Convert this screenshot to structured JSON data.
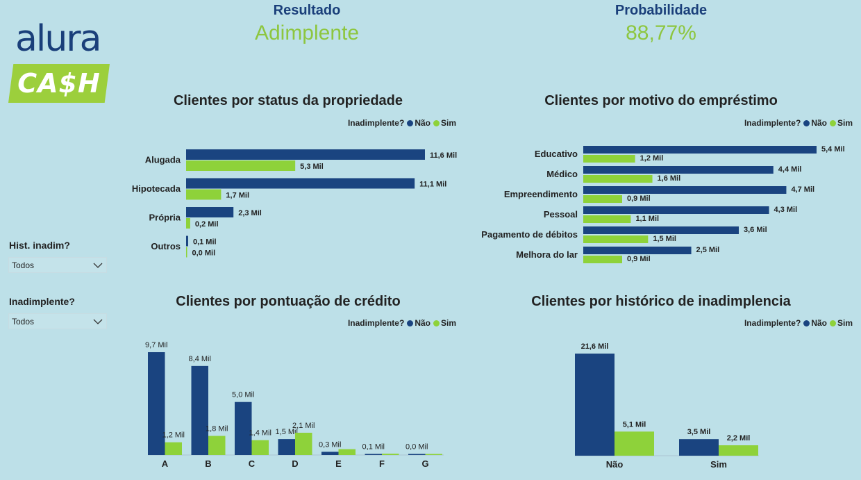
{
  "logo": {
    "line1": "alura",
    "line2": "CA$H"
  },
  "kpis": [
    {
      "label": "Resultado",
      "value": "Adimplente"
    },
    {
      "label": "Probabilidade",
      "value": "88,77%"
    }
  ],
  "slicers": [
    {
      "title": "Hist. inadim?",
      "value": "Todos"
    },
    {
      "title": "Inadimplente?",
      "value": "Todos"
    }
  ],
  "legend": {
    "title": "Inadimplente?",
    "items": [
      "Não",
      "Sim"
    ]
  },
  "colors": {
    "nao": "#1a4480",
    "sim": "#8ed23a",
    "background": "#bde0e8",
    "kpi_value": "#8dc63f",
    "kpi_label": "#1a3f7a"
  },
  "chart_data": [
    {
      "type": "bar",
      "orientation": "horizontal",
      "title": "Clientes por status da propriedade",
      "categories": [
        "Alugada",
        "Hipotecada",
        "Própria",
        "Outros"
      ],
      "series": [
        {
          "name": "Não",
          "values": [
            11.6,
            11.1,
            2.3,
            0.1
          ],
          "labels": [
            "11,6 Mil",
            "11,1 Mil",
            "2,3 Mil",
            "0,1 Mil"
          ]
        },
        {
          "name": "Sim",
          "values": [
            5.3,
            1.7,
            0.2,
            0.0
          ],
          "labels": [
            "5,3 Mil",
            "1,7 Mil",
            "0,2 Mil",
            "0,0 Mil"
          ]
        }
      ],
      "xlim": [
        0,
        11.6
      ],
      "legend": "top-right"
    },
    {
      "type": "bar",
      "orientation": "horizontal",
      "title": "Clientes por motivo do empréstimo",
      "categories": [
        "Educativo",
        "Médico",
        "Empreendimento",
        "Pessoal",
        "Pagamento de débitos",
        "Melhora do lar"
      ],
      "series": [
        {
          "name": "Não",
          "values": [
            5.4,
            4.4,
            4.7,
            4.3,
            3.6,
            2.5
          ],
          "labels": [
            "5,4 Mil",
            "4,4 Mil",
            "4,7 Mil",
            "4,3 Mil",
            "3,6 Mil",
            "2,5 Mil"
          ]
        },
        {
          "name": "Sim",
          "values": [
            1.2,
            1.6,
            0.9,
            1.1,
            1.5,
            0.9
          ],
          "labels": [
            "1,2 Mil",
            "1,6 Mil",
            "0,9 Mil",
            "1,1 Mil",
            "1,5 Mil",
            "0,9 Mil"
          ]
        }
      ],
      "xlim": [
        0,
        5.4
      ],
      "legend": "top-right"
    },
    {
      "type": "bar",
      "orientation": "vertical",
      "title": "Clientes por pontuação de crédito",
      "categories": [
        "A",
        "B",
        "C",
        "D",
        "E",
        "F",
        "G"
      ],
      "series": [
        {
          "name": "Não",
          "values": [
            9.7,
            8.4,
            5.0,
            1.5,
            0.3,
            0.1,
            0.0
          ],
          "labels": [
            "9,7 Mil",
            "8,4 Mil",
            "5,0 Mil",
            "1,5 Mil",
            "0,3 Mil",
            "0,1 Mil",
            "0,0 Mil"
          ]
        },
        {
          "name": "Sim",
          "values": [
            1.2,
            1.8,
            1.4,
            2.1,
            0.55,
            0.12,
            0.05
          ],
          "labels": [
            "1,2 Mil",
            "1,8 Mil",
            "1,4 Mil",
            "2,1 Mil",
            "",
            "",
            ""
          ]
        }
      ],
      "ylim": [
        0,
        9.7
      ],
      "legend": "top-right"
    },
    {
      "type": "bar",
      "orientation": "vertical",
      "title": "Clientes por histórico de inadimplencia",
      "categories": [
        "Não",
        "Sim"
      ],
      "series": [
        {
          "name": "Não",
          "values": [
            21.6,
            3.5
          ],
          "labels": [
            "21,6 Mil",
            "3,5 Mil"
          ]
        },
        {
          "name": "Sim",
          "values": [
            5.1,
            2.2
          ],
          "labels": [
            "5,1 Mil",
            "2,2 Mil"
          ]
        }
      ],
      "ylim": [
        0,
        21.6
      ],
      "legend": "top-right"
    }
  ]
}
